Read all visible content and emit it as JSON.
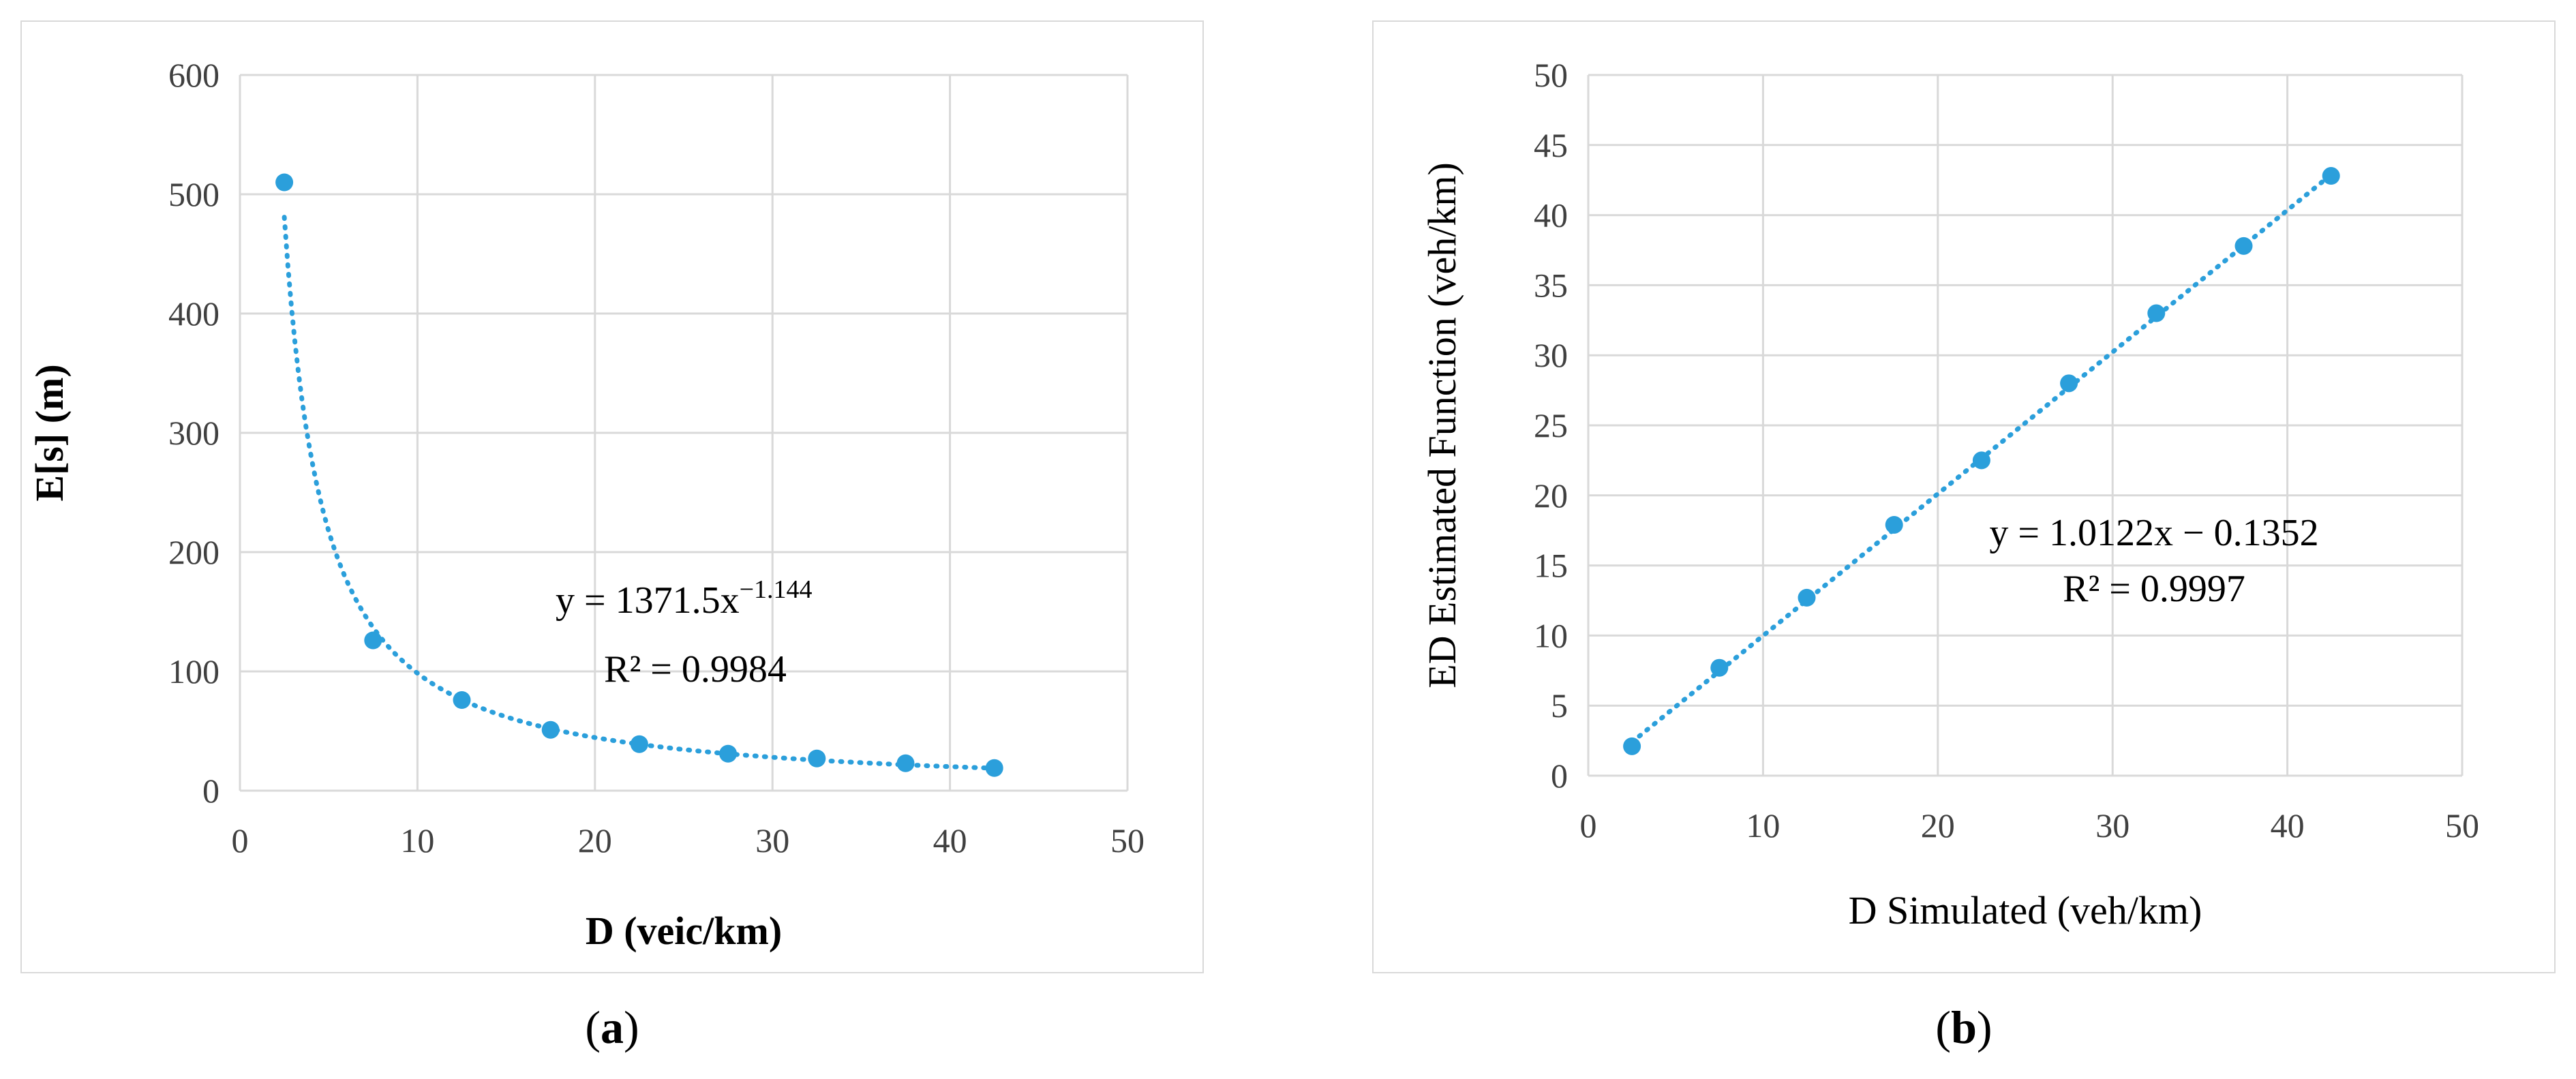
{
  "colors": {
    "marker": "#2b9fdb",
    "grid": "#d9d9d9",
    "tick_text": "#404040"
  },
  "panels": {
    "a": {
      "letter": "a"
    },
    "b": {
      "letter": "b"
    }
  },
  "chart_data": [
    {
      "type": "scatter",
      "title": "",
      "xlabel": "D (veic/km)",
      "ylabel": "E[s] (m)",
      "xlim": [
        0,
        50
      ],
      "ylim": [
        0,
        600
      ],
      "x_ticks": [
        "0",
        "10",
        "20",
        "30",
        "40",
        "50"
      ],
      "y_ticks": [
        "0",
        "100",
        "200",
        "300",
        "400",
        "500",
        "600"
      ],
      "grid": true,
      "x": [
        2.5,
        7.5,
        12.5,
        17.5,
        22.5,
        27.5,
        32.5,
        37.5,
        42.5
      ],
      "y": [
        510,
        126,
        76,
        51,
        39,
        31,
        27,
        23,
        19
      ],
      "trendline": {
        "kind": "power",
        "a": 1371.5,
        "b": -1.144,
        "style": "dotted"
      },
      "equation": {
        "prefix": "y = 1371.5x",
        "exponent": "−1.144",
        "r2": "R² = 0.9984"
      }
    },
    {
      "type": "scatter",
      "title": "",
      "xlabel": "D Simulated (veh/km)",
      "ylabel": "ED Estimated Function (veh/km)",
      "xlim": [
        0,
        50
      ],
      "ylim": [
        0,
        50
      ],
      "x_ticks": [
        "0",
        "10",
        "20",
        "30",
        "40",
        "50"
      ],
      "y_ticks": [
        "0",
        "5",
        "10",
        "15",
        "20",
        "25",
        "30",
        "35",
        "40",
        "45",
        "50"
      ],
      "grid": true,
      "x": [
        2.5,
        7.5,
        12.5,
        17.5,
        22.5,
        27.5,
        32.5,
        37.5,
        42.5
      ],
      "y": [
        2.1,
        7.7,
        12.7,
        17.9,
        22.5,
        28.0,
        33.0,
        37.8,
        42.8
      ],
      "trendline": {
        "kind": "linear",
        "slope": 1.0122,
        "intercept": -0.1352,
        "style": "dotted"
      },
      "equation": {
        "line": "y = 1.0122x − 0.1352",
        "r2": "R² = 0.9997"
      }
    }
  ]
}
